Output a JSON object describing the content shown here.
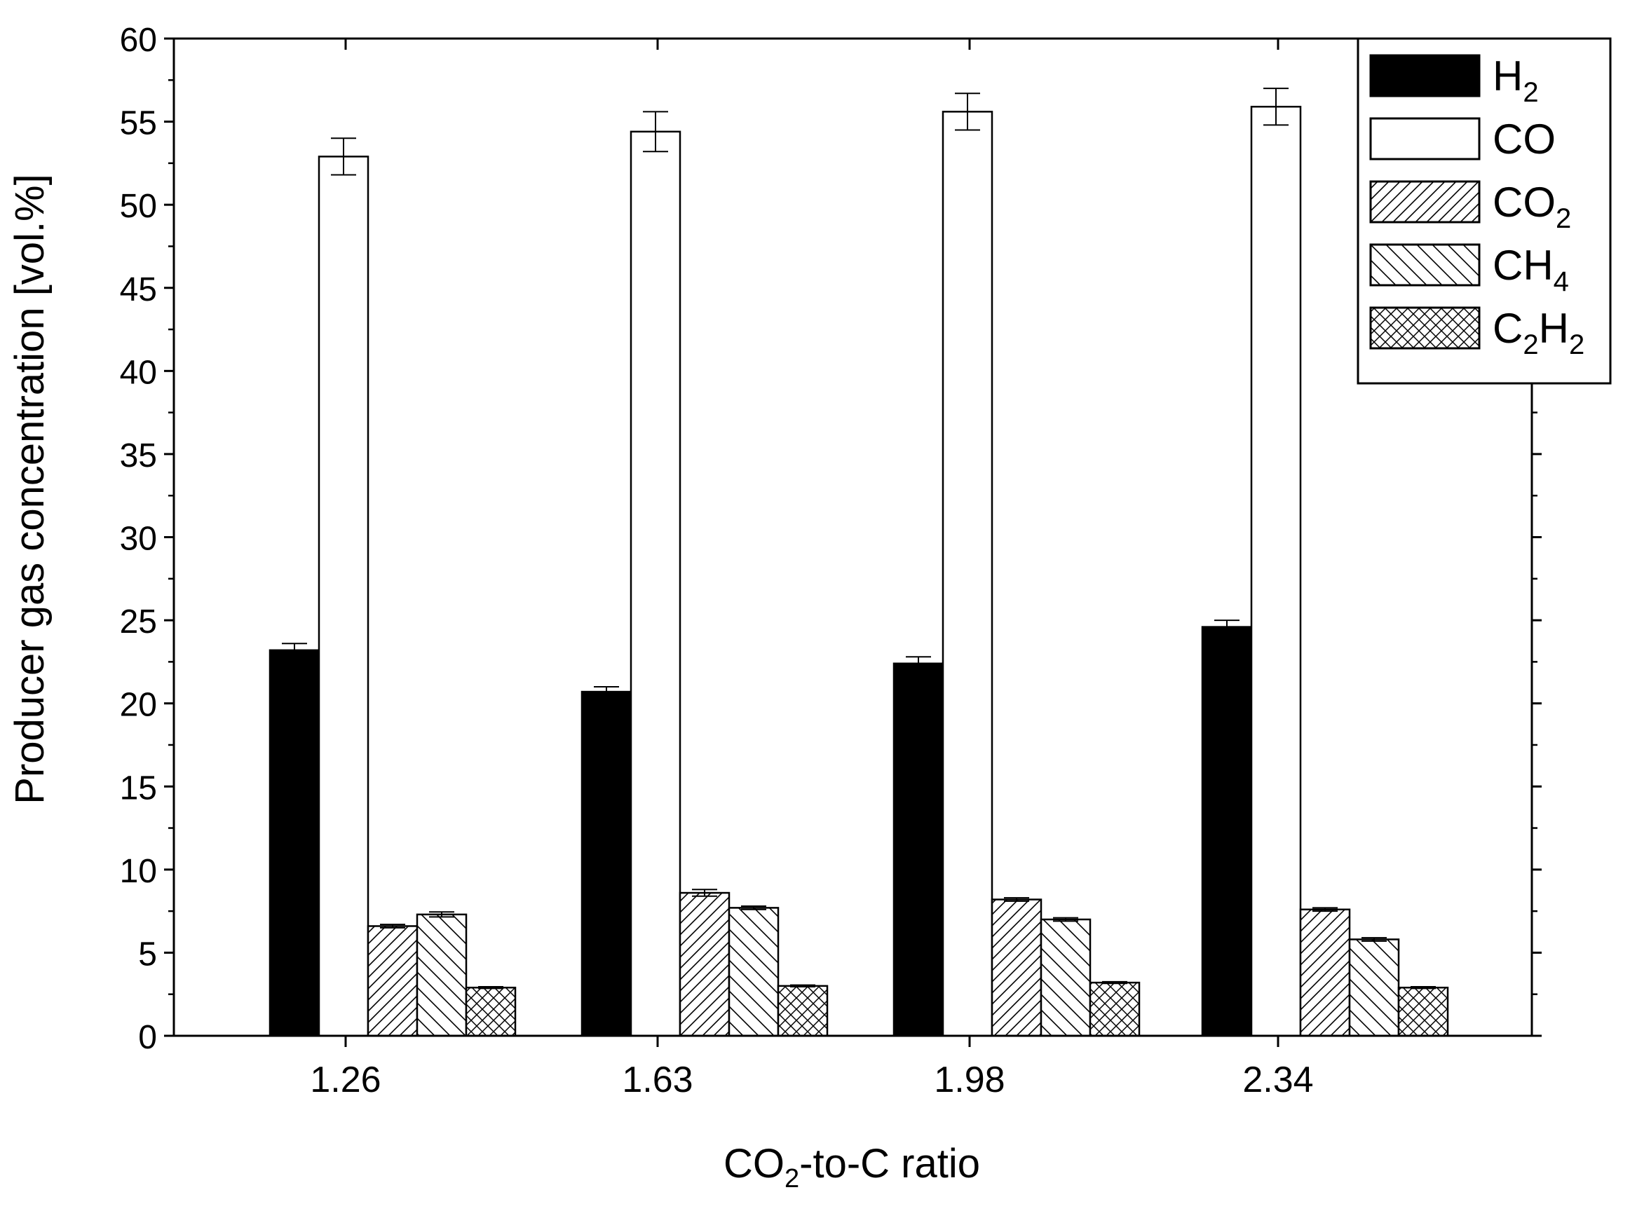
{
  "chart_data": {
    "type": "bar",
    "title": "",
    "xlabel": {
      "main": "CO",
      "sub": "2",
      "rest": "-to-C ratio"
    },
    "ylabel": "Producer gas concentration [vol.%]",
    "ylim": [
      0,
      60
    ],
    "yticks": [
      "0",
      "5",
      "10",
      "15",
      "20",
      "25",
      "30",
      "35",
      "40",
      "45",
      "50",
      "55",
      "60"
    ],
    "categories": [
      "1.26",
      "1.63",
      "1.98",
      "2.34"
    ],
    "legend_position": "top-right",
    "series": [
      {
        "name": "H2",
        "label_main": "H",
        "label_sub": "2",
        "label_main2": "",
        "label_sub2": "",
        "pattern": "solid",
        "values": [
          23.2,
          20.7,
          22.4,
          24.6
        ],
        "errors": [
          0.4,
          0.3,
          0.4,
          0.4
        ]
      },
      {
        "name": "CO",
        "label_main": "CO",
        "label_sub": "",
        "label_main2": "",
        "label_sub2": "",
        "pattern": "empty",
        "values": [
          52.9,
          54.4,
          55.6,
          55.9
        ],
        "errors": [
          1.1,
          1.2,
          1.1,
          1.1
        ]
      },
      {
        "name": "CO2",
        "label_main": "CO",
        "label_sub": "2",
        "label_main2": "",
        "label_sub2": "",
        "pattern": "fdiag",
        "values": [
          6.6,
          8.6,
          8.2,
          7.6
        ],
        "errors": [
          0.1,
          0.2,
          0.1,
          0.1
        ]
      },
      {
        "name": "CH4",
        "label_main": "CH",
        "label_sub": "4",
        "label_main2": "",
        "label_sub2": "",
        "pattern": "bdiag",
        "values": [
          7.3,
          7.7,
          7.0,
          5.8
        ],
        "errors": [
          0.15,
          0.1,
          0.1,
          0.1
        ]
      },
      {
        "name": "C2H2",
        "label_main": "C",
        "label_sub": "2",
        "label_main2": "H",
        "label_sub2": "2",
        "pattern": "cross",
        "values": [
          2.9,
          3.0,
          3.2,
          2.9
        ],
        "errors": [
          0.05,
          0.05,
          0.05,
          0.05
        ]
      }
    ]
  }
}
